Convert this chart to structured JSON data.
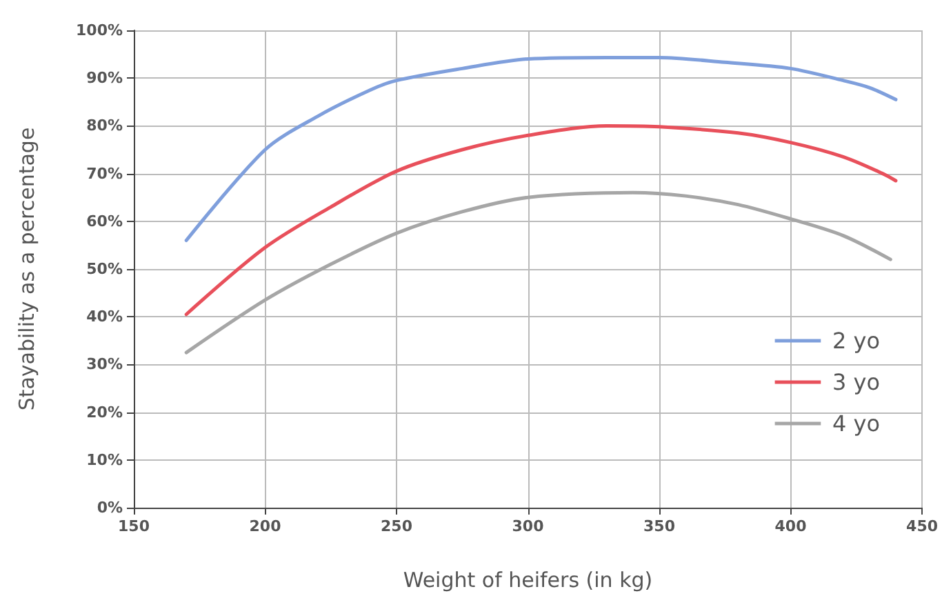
{
  "chart_data": {
    "type": "line",
    "xlabel": "Weight of heifers (in kg)",
    "ylabel": "Stayability as a percentage",
    "xlim": [
      150,
      450
    ],
    "xticks": [
      150,
      200,
      250,
      300,
      350,
      400,
      450
    ],
    "ylim": [
      0,
      100
    ],
    "yticks": [
      {
        "value": 0,
        "label": "0%"
      },
      {
        "value": 10,
        "label": "10%"
      },
      {
        "value": 20,
        "label": "20%"
      },
      {
        "value": 30,
        "label": "30%"
      },
      {
        "value": 40,
        "label": "40%"
      },
      {
        "value": 50,
        "label": "50%"
      },
      {
        "value": 60,
        "label": "60%"
      },
      {
        "value": 70,
        "label": "70%"
      },
      {
        "value": 80,
        "label": "80%"
      },
      {
        "value": 90,
        "label": "90%"
      },
      {
        "value": 100,
        "label": "100%"
      }
    ],
    "grid": true,
    "legend": "bottom right",
    "marker": "none",
    "line_style": "solid",
    "series": [
      {
        "name": "2 yo",
        "color": "#7f9fdc",
        "x": [
          170,
          200,
          220,
          240,
          250,
          275,
          300,
          330,
          350,
          375,
          400,
          420,
          430,
          440
        ],
        "values": [
          56,
          75,
          82,
          87.5,
          89.5,
          92,
          94,
          94.3,
          94.3,
          93.3,
          92,
          89.5,
          88,
          85.5
        ]
      },
      {
        "name": "3 yo",
        "color": "#e8505b",
        "x": [
          170,
          200,
          225,
          250,
          275,
          300,
          330,
          350,
          380,
          400,
          420,
          435,
          440
        ],
        "values": [
          40.5,
          54.5,
          63,
          70.5,
          75,
          78,
          80,
          79.8,
          78.5,
          76.5,
          73.5,
          70,
          68.5
        ]
      },
      {
        "name": "4 yo",
        "color": "#a6a6a6",
        "x": [
          170,
          200,
          225,
          250,
          275,
          300,
          340,
          360,
          380,
          400,
          420,
          438
        ],
        "values": [
          32.5,
          43.5,
          51,
          57.5,
          62,
          65,
          66,
          65.3,
          63.5,
          60.5,
          57,
          52
        ]
      }
    ]
  }
}
